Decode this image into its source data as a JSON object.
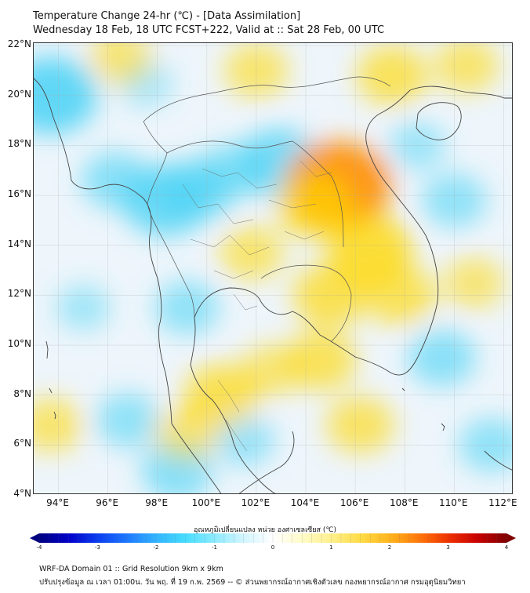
{
  "title": {
    "line1": "Temperature Change 24-hr (℃) - [Data Assimilation]",
    "line2": "Wednesday 18 Feb, 18 UTC FCST+222, Valid at :: Sat 28 Feb, 00 UTC"
  },
  "axes": {
    "lat_labels": [
      "22°N",
      "20°N",
      "18°N",
      "16°N",
      "14°N",
      "12°N",
      "10°N",
      "8°N",
      "6°N",
      "4°N"
    ],
    "lon_labels": [
      "94°E",
      "96°E",
      "98°E",
      "100°E",
      "102°E",
      "104°E",
      "106°E",
      "108°E",
      "110°E",
      "112°E"
    ]
  },
  "colorbar": {
    "title": "อุณหภูมิเปลี่ยนแปลง หน่วย องศาเซลเซียส (℃)",
    "ticks": [
      "-4",
      "-3",
      "-2",
      "-1",
      "0",
      "1",
      "2",
      "3",
      "4"
    ],
    "min": -4,
    "max": 4,
    "colors": [
      "#000080",
      "#0000c8",
      "#0a3cf0",
      "#1e78ff",
      "#32b4ff",
      "#46dcff",
      "#8cebff",
      "#d2f5ff",
      "#ffffff",
      "#fffbc8",
      "#fff08c",
      "#ffdc46",
      "#ffb41e",
      "#ff780a",
      "#f03200",
      "#c80000",
      "#800000"
    ]
  },
  "footer": {
    "line1": "WRF-DA Domain 01 :: Grid Resolution 9km x 9km",
    "line2": "ปรับปรุงข้อมูล ณ เวลา 01:00น. วัน พฤ. ที่ 19 ก.พ. 2569 -- © ส่วนพยากรณ์อากาศเชิงตัวเลข กองพยากรณ์อากาศ กรมอุตุนิยมวิทยา"
  },
  "map": {
    "extent": {
      "lon_min": 93,
      "lon_max": 112.4,
      "lat_min": 4,
      "lat_max": 22.1
    },
    "colors": {
      "cool": "#46d2f5",
      "warm": "#ffd700",
      "hot": "#ff8c00",
      "coast": "#444444",
      "grid": "#aaaaaa"
    },
    "blobs": [
      {
        "lon": 93.7,
        "lat": 20.0,
        "value": -1.4
      },
      {
        "lon": 98.3,
        "lat": 15.8,
        "value": -1.2
      },
      {
        "lon": 99.6,
        "lat": 16.2,
        "value": -0.9
      },
      {
        "lon": 101.0,
        "lat": 17.0,
        "value": -0.6
      },
      {
        "lon": 102.9,
        "lat": 17.3,
        "value": -1.1
      },
      {
        "lon": 96.3,
        "lat": 16.6,
        "value": -0.7
      },
      {
        "lon": 97.5,
        "lat": 20.5,
        "value": -0.3
      },
      {
        "lon": 96.8,
        "lat": 7.0,
        "value": -0.6
      },
      {
        "lon": 98.8,
        "lat": 5.0,
        "value": -0.8
      },
      {
        "lon": 95.0,
        "lat": 11.5,
        "value": -0.3
      },
      {
        "lon": 99.2,
        "lat": 11.5,
        "value": -0.6
      },
      {
        "lon": 101.5,
        "lat": 6.2,
        "value": -0.5
      },
      {
        "lon": 109.5,
        "lat": 9.5,
        "value": -0.7
      },
      {
        "lon": 111.5,
        "lat": 6.0,
        "value": -0.6
      },
      {
        "lon": 110.0,
        "lat": 15.8,
        "value": -0.6
      },
      {
        "lon": 108.5,
        "lat": 18.0,
        "value": -0.4
      },
      {
        "lon": 105.3,
        "lat": 16.4,
        "value": 1.8
      },
      {
        "lon": 104.4,
        "lat": 15.6,
        "value": 1.0
      },
      {
        "lon": 106.6,
        "lat": 13.8,
        "value": 1.2
      },
      {
        "lon": 105.0,
        "lat": 12.0,
        "value": 0.9
      },
      {
        "lon": 107.8,
        "lat": 12.0,
        "value": 0.8
      },
      {
        "lon": 104.6,
        "lat": 9.4,
        "value": 0.8
      },
      {
        "lon": 106.2,
        "lat": 6.8,
        "value": 0.7
      },
      {
        "lon": 100.6,
        "lat": 8.0,
        "value": 0.9
      },
      {
        "lon": 99.2,
        "lat": 6.5,
        "value": 0.6
      },
      {
        "lon": 93.7,
        "lat": 6.8,
        "value": 0.6
      },
      {
        "lon": 96.5,
        "lat": 21.5,
        "value": 0.6
      },
      {
        "lon": 102.0,
        "lat": 21.0,
        "value": 0.6
      },
      {
        "lon": 107.5,
        "lat": 20.8,
        "value": 0.8
      },
      {
        "lon": 110.5,
        "lat": 21.2,
        "value": 0.6
      },
      {
        "lon": 101.8,
        "lat": 13.7,
        "value": 0.6
      },
      {
        "lon": 102.6,
        "lat": 9.0,
        "value": 0.5
      },
      {
        "lon": 110.8,
        "lat": 12.5,
        "value": 0.5
      }
    ]
  }
}
